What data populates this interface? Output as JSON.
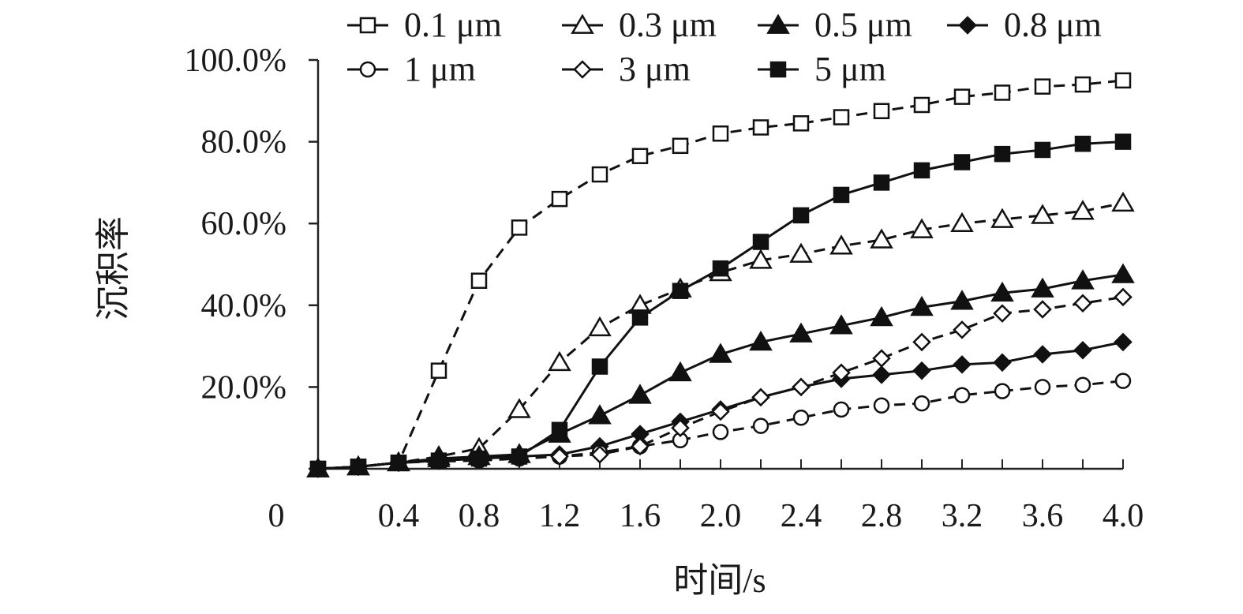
{
  "chart_data": {
    "type": "line",
    "title": "",
    "xlabel": "时间/s",
    "ylabel": "沉积率",
    "xlim": [
      0,
      4.0
    ],
    "ylim": [
      0,
      100
    ],
    "x_origin_label": "0",
    "x_ticks": [
      "0.4",
      "0.8",
      "1.2",
      "1.6",
      "2.0",
      "2.4",
      "2.8",
      "3.2",
      "3.6",
      "4.0"
    ],
    "y_ticks": [
      "20.0%",
      "40.0%",
      "60.0%",
      "80.0%",
      "100.0%"
    ],
    "grid": false,
    "legend_position": "top",
    "x": [
      0.0,
      0.2,
      0.4,
      0.6,
      0.8,
      1.0,
      1.2,
      1.4,
      1.6,
      1.8,
      2.0,
      2.2,
      2.4,
      2.6,
      2.8,
      3.0,
      3.2,
      3.4,
      3.6,
      3.8,
      4.0
    ],
    "series": [
      {
        "name": "0.1 μm",
        "marker": "square-open",
        "line": "dashed",
        "values": [
          0.0,
          0.5,
          1.5,
          24,
          46,
          59,
          66,
          72,
          76.5,
          79,
          82,
          83.5,
          84.5,
          86,
          87.5,
          89,
          91,
          92,
          93.5,
          94,
          95
        ]
      },
      {
        "name": "0.3 μm",
        "marker": "triangle-open",
        "line": "dashed",
        "values": [
          0.0,
          0.5,
          1.5,
          3,
          5,
          14.5,
          26,
          34.5,
          40,
          44,
          48,
          51,
          52.5,
          54.5,
          56,
          58.5,
          60,
          61,
          62,
          63,
          65
        ]
      },
      {
        "name": "0.5 μm",
        "marker": "triangle-filled",
        "line": "solid",
        "values": [
          0.0,
          0.5,
          1.5,
          2.5,
          3,
          3.5,
          8.5,
          13,
          18,
          23.5,
          28,
          31,
          33,
          35,
          37,
          39.5,
          41,
          43,
          44,
          46,
          47.5
        ]
      },
      {
        "name": "0.8 μm",
        "marker": "diamond-filled",
        "line": "solid",
        "values": [
          0.0,
          0.5,
          1.5,
          2,
          2.5,
          3,
          3.5,
          5.5,
          8.5,
          11.5,
          14.5,
          17.5,
          20,
          22,
          23,
          24,
          25.5,
          26,
          28,
          29,
          31
        ]
      },
      {
        "name": "1 μm",
        "marker": "circle-open",
        "line": "dashed",
        "values": [
          0.0,
          0.5,
          1.5,
          1.8,
          2,
          2.5,
          3,
          4,
          5.5,
          7,
          9,
          10.5,
          12.5,
          14.5,
          15.5,
          16,
          18,
          19,
          20,
          20.5,
          21.5
        ]
      },
      {
        "name": "3 μm",
        "marker": "diamond-open",
        "line": "dashed",
        "values": [
          0.0,
          0.5,
          1.5,
          2,
          2.5,
          3,
          3,
          3.5,
          5.5,
          10,
          14,
          17.5,
          20,
          23.5,
          27,
          31,
          34,
          38,
          39,
          40.5,
          42
        ]
      },
      {
        "name": "5 μm",
        "marker": "square-filled",
        "line": "solid",
        "values": [
          0.0,
          0.5,
          1.5,
          2,
          2.5,
          3,
          9.5,
          25,
          37,
          43.5,
          49,
          55.5,
          62,
          67,
          70,
          73,
          75,
          77,
          78,
          79.5,
          80
        ]
      }
    ]
  }
}
